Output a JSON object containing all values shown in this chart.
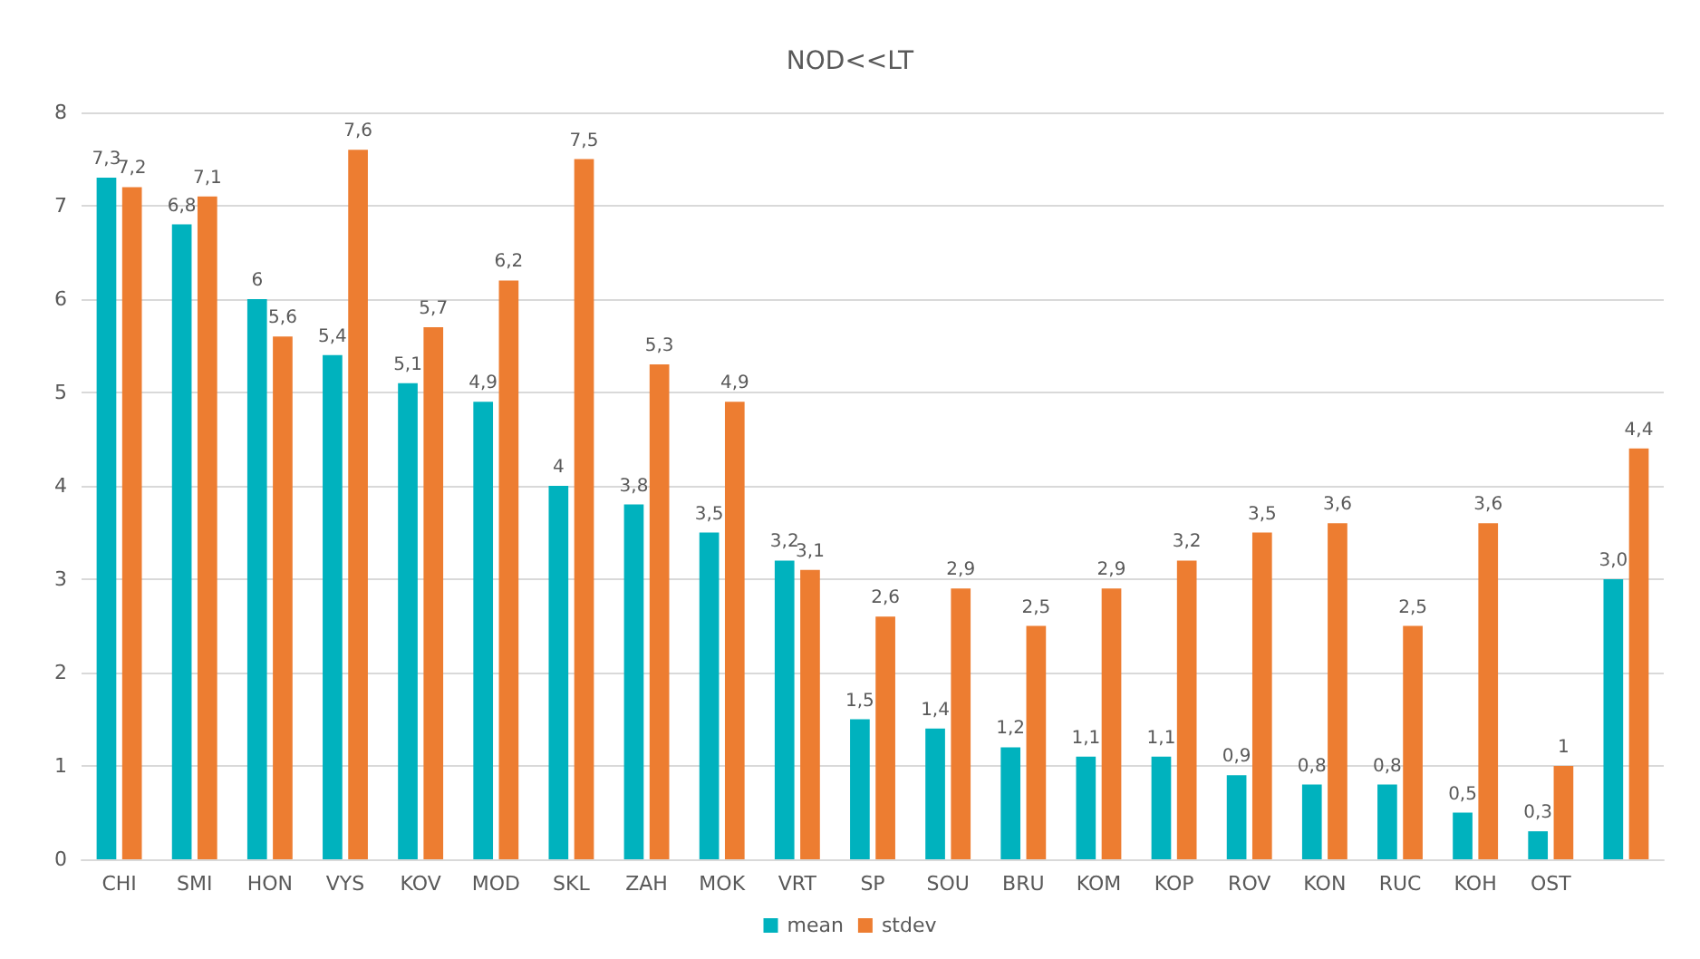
{
  "chart_data": {
    "type": "bar",
    "title": "NOD<<LT",
    "categories": [
      "CHI",
      "SMI",
      "HON",
      "VYS",
      "KOV",
      "MOD",
      "SKL",
      "ZAH",
      "MOK",
      "VRT",
      "SP",
      "SOU",
      "BRU",
      "KOM",
      "KOP",
      "ROV",
      "KON",
      "RUC",
      "KOH",
      "OST",
      null
    ],
    "series": [
      {
        "name": "mean",
        "color": "#00b2be",
        "values": [
          7.3,
          6.8,
          6,
          5.4,
          5.1,
          4.9,
          4,
          3.8,
          3.5,
          3.2,
          1.5,
          1.4,
          1.2,
          1.1,
          1.1,
          0.9,
          0.8,
          0.8,
          0.5,
          0.3,
          3.0
        ],
        "value_labels": [
          "7,3",
          "6,8",
          "6",
          "5,4",
          "5,1",
          "4,9",
          "4",
          "3,8",
          "3,5",
          "3,2",
          "1,5",
          "1,4",
          "1,2",
          "1,1",
          "1,1",
          "0,9",
          "0,8",
          "0,8",
          "0,5",
          "0,3",
          "3,0"
        ]
      },
      {
        "name": "stdev",
        "color": "#ed7d31",
        "values": [
          7.2,
          7.1,
          5.6,
          7.6,
          5.7,
          6.2,
          7.5,
          5.3,
          4.9,
          3.1,
          2.6,
          2.9,
          2.5,
          2.9,
          3.2,
          3.5,
          3.6,
          2.5,
          3.6,
          1,
          4.4
        ],
        "value_labels": [
          "7,2",
          "7,1",
          "5,6",
          "7,6",
          "5,7",
          "6,2",
          "7,5",
          "5,3",
          "4,9",
          "3,1",
          "2,6",
          "2,9",
          "2,5",
          "2,9",
          "3,2",
          "3,5",
          "3,6",
          "2,5",
          "3,6",
          "1",
          "4,4"
        ]
      }
    ],
    "ylim": [
      0,
      8
    ],
    "yticks": [
      0,
      1,
      2,
      3,
      4,
      5,
      6,
      7,
      8
    ],
    "grid": "y",
    "legend": "bottom"
  }
}
